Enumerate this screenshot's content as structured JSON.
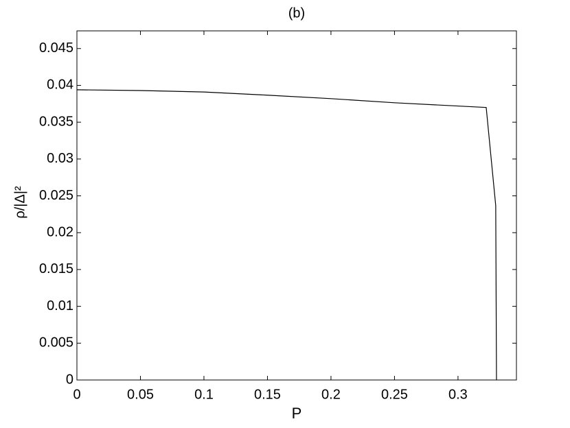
{
  "chart_data": {
    "type": "line",
    "title": "(b)",
    "x_label": "P",
    "y_label": "ρ/|Δ|²",
    "x": [
      0,
      0.05,
      0.1,
      0.15,
      0.2,
      0.25,
      0.3222,
      0.3297,
      0.3303
    ],
    "series": [
      {
        "color": "#000000",
        "values": [
          0.0394,
          0.0393,
          0.0391,
          0.03867,
          0.0382,
          0.03764,
          0.037,
          0.02367,
          0
        ]
      }
    ],
    "xlim": [
      0,
      0.346
    ],
    "ylim": [
      0,
      0.0474
    ],
    "xticks": [
      0,
      0.05,
      0.1,
      0.15,
      0.2,
      0.25,
      0.3
    ],
    "yticks": [
      0,
      0.005,
      0.01,
      0.015,
      0.02,
      0.025,
      0.03,
      0.035,
      0.04,
      0.045
    ]
  }
}
